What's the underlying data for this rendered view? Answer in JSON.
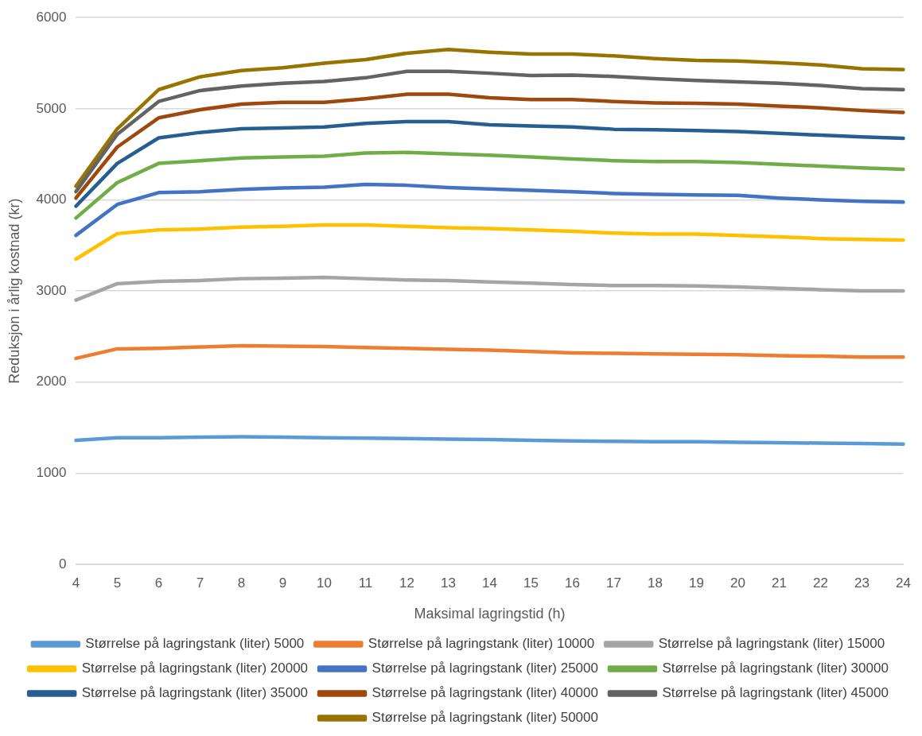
{
  "chart_data": {
    "type": "line",
    "xlabel": "Maksimal lagringstid (h)",
    "ylabel": "Reduksjon i årlig kostnad (kr)",
    "categories": [
      "4",
      "5",
      "6",
      "7",
      "8",
      "9",
      "10",
      "11",
      "12",
      "13",
      "14",
      "15",
      "16",
      "17",
      "18",
      "19",
      "20",
      "21",
      "22",
      "23",
      "24"
    ],
    "ylim": [
      0,
      6000
    ],
    "yticks": [
      0,
      1000,
      2000,
      3000,
      4000,
      5000,
      6000
    ],
    "grid": "y",
    "legend": "bottom",
    "marker": "none",
    "line_style": "solid",
    "series": [
      {
        "name": "Størrelse på lagringstank (liter) 5000",
        "color": "#5b9bd5",
        "values": [
          1360,
          1390,
          1390,
          1395,
          1400,
          1395,
          1390,
          1385,
          1380,
          1375,
          1370,
          1360,
          1355,
          1350,
          1345,
          1345,
          1340,
          1335,
          1330,
          1325,
          1320
        ]
      },
      {
        "name": "Størrelse på lagringstank (liter) 10000",
        "color": "#ed7d31",
        "values": [
          2260,
          2365,
          2370,
          2385,
          2400,
          2395,
          2390,
          2380,
          2370,
          2360,
          2350,
          2335,
          2320,
          2315,
          2310,
          2305,
          2300,
          2290,
          2285,
          2275,
          2275
        ]
      },
      {
        "name": "Størrelse på lagringstank (liter) 15000",
        "color": "#a5a5a5",
        "values": [
          2900,
          3080,
          3105,
          3115,
          3135,
          3140,
          3150,
          3135,
          3120,
          3115,
          3100,
          3085,
          3070,
          3060,
          3060,
          3055,
          3045,
          3030,
          3015,
          3000,
          3000
        ]
      },
      {
        "name": "Størrelse på lagringstank (liter) 20000",
        "color": "#ffc000",
        "values": [
          3350,
          3630,
          3670,
          3680,
          3700,
          3710,
          3725,
          3725,
          3710,
          3695,
          3685,
          3670,
          3655,
          3635,
          3625,
          3625,
          3610,
          3595,
          3575,
          3565,
          3560
        ]
      },
      {
        "name": "Størrelse på lagringstank (liter) 25000",
        "color": "#4472c4",
        "values": [
          3610,
          3950,
          4080,
          4090,
          4115,
          4130,
          4140,
          4170,
          4160,
          4135,
          4120,
          4105,
          4090,
          4070,
          4060,
          4055,
          4050,
          4020,
          4000,
          3985,
          3975
        ]
      },
      {
        "name": "Størrelse på lagringstank (liter) 30000",
        "color": "#70ad47",
        "values": [
          3800,
          4190,
          4400,
          4430,
          4460,
          4470,
          4480,
          4515,
          4520,
          4505,
          4490,
          4470,
          4450,
          4430,
          4420,
          4420,
          4410,
          4390,
          4370,
          4350,
          4335
        ]
      },
      {
        "name": "Størrelse på lagringstank (liter) 35000",
        "color": "#255e91",
        "values": [
          3930,
          4400,
          4680,
          4740,
          4780,
          4790,
          4800,
          4840,
          4860,
          4860,
          4825,
          4810,
          4800,
          4775,
          4770,
          4760,
          4750,
          4730,
          4710,
          4690,
          4675
        ]
      },
      {
        "name": "Størrelse på lagringstank (liter) 40000",
        "color": "#9e480e",
        "values": [
          4020,
          4580,
          4900,
          4990,
          5050,
          5070,
          5070,
          5110,
          5160,
          5160,
          5120,
          5100,
          5100,
          5080,
          5065,
          5060,
          5050,
          5030,
          5010,
          4980,
          4960
        ]
      },
      {
        "name": "Størrelse på lagringstank (liter) 45000",
        "color": "#636363",
        "values": [
          4090,
          4720,
          5080,
          5200,
          5250,
          5280,
          5300,
          5340,
          5410,
          5410,
          5390,
          5365,
          5370,
          5355,
          5330,
          5310,
          5295,
          5280,
          5255,
          5220,
          5210
        ]
      },
      {
        "name": "Størrelse på lagringstank (liter) 50000",
        "color": "#997300",
        "values": [
          4150,
          4780,
          5210,
          5350,
          5420,
          5450,
          5500,
          5540,
          5610,
          5650,
          5620,
          5600,
          5600,
          5580,
          5550,
          5530,
          5525,
          5505,
          5480,
          5440,
          5430
        ]
      }
    ]
  }
}
